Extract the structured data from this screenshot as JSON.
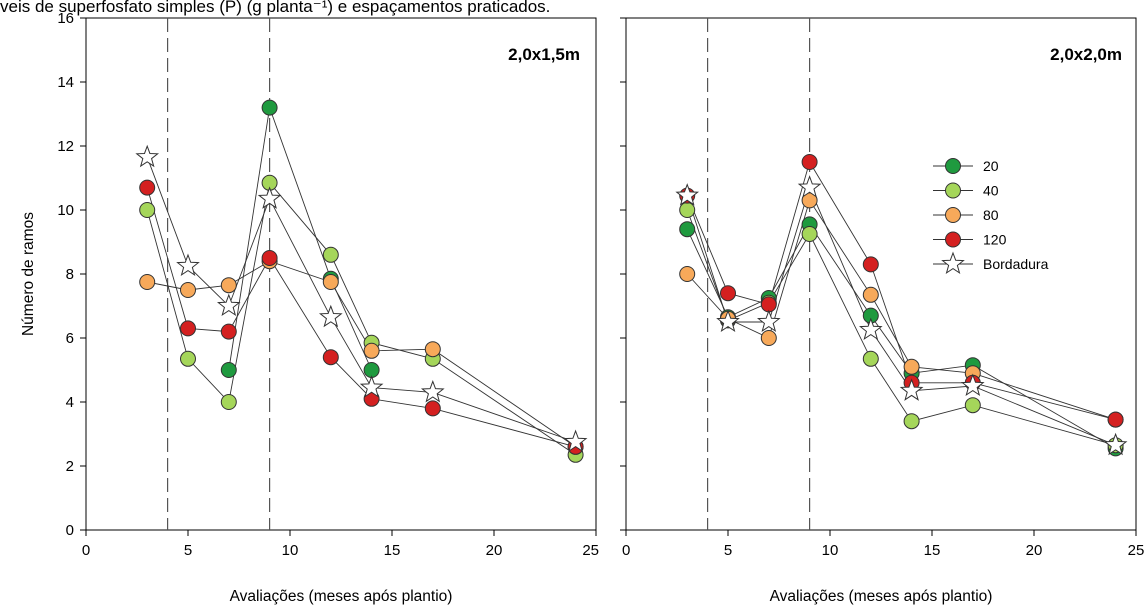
{
  "caption": "veis de superfosfato simples (P) (g planta⁻¹) e espaçamentos praticados.",
  "chart_data": [
    {
      "type": "line",
      "title": "2,0x1,5m",
      "xlabel": "Avaliações (meses após plantio)",
      "ylabel": "Número de ramos",
      "xlim": [
        0,
        25
      ],
      "ylim": [
        0,
        16
      ],
      "xticks": [
        0,
        5,
        10,
        15,
        20,
        25
      ],
      "yticks": [
        0,
        2,
        4,
        6,
        8,
        10,
        12,
        14,
        16
      ],
      "reference_lines_x": [
        4,
        9
      ],
      "x": [
        3,
        5,
        7,
        9,
        12,
        14,
        17,
        24
      ],
      "series": [
        {
          "name": "20",
          "color": "#1f9a3f",
          "marker": "circle",
          "values": [
            null,
            null,
            5.0,
            13.2,
            7.85,
            5.0,
            null,
            null
          ]
        },
        {
          "name": "40",
          "color": "#a5d65a",
          "marker": "circle",
          "values": [
            10.0,
            5.35,
            4.0,
            10.85,
            8.6,
            5.85,
            5.35,
            2.35
          ]
        },
        {
          "name": "80",
          "color": "#f7a95a",
          "marker": "circle",
          "values": [
            7.75,
            7.5,
            7.65,
            8.4,
            7.75,
            5.6,
            5.65,
            2.6
          ]
        },
        {
          "name": "120",
          "color": "#d42020",
          "marker": "circle",
          "values": [
            10.7,
            6.3,
            6.2,
            8.5,
            5.4,
            4.1,
            3.8,
            2.6
          ]
        },
        {
          "name": "Bordadura",
          "color": "#ffffff",
          "marker": "star",
          "values": [
            11.65,
            8.25,
            7.0,
            10.35,
            6.65,
            4.45,
            4.3,
            2.75
          ]
        }
      ]
    },
    {
      "type": "line",
      "title": "2,0x2,0m",
      "xlabel": "Avaliações (meses após plantio)",
      "ylabel": "",
      "xlim": [
        0,
        25
      ],
      "ylim": [
        0,
        16
      ],
      "xticks": [
        0,
        5,
        10,
        15,
        20,
        25
      ],
      "reference_lines_x": [
        4,
        9
      ],
      "legend_position": "top-right",
      "x": [
        3,
        5,
        7,
        9,
        12,
        14,
        17,
        24
      ],
      "series": [
        {
          "name": "20",
          "color": "#1f9a3f",
          "marker": "circle",
          "values": [
            9.4,
            6.65,
            7.25,
            9.55,
            6.7,
            4.9,
            5.15,
            2.55
          ]
        },
        {
          "name": "40",
          "color": "#a5d65a",
          "marker": "circle",
          "values": [
            10.0,
            6.55,
            7.1,
            9.25,
            5.35,
            3.4,
            3.9,
            2.65
          ]
        },
        {
          "name": "80",
          "color": "#f7a95a",
          "marker": "circle",
          "values": [
            8.0,
            6.6,
            6.0,
            10.3,
            7.35,
            5.1,
            4.9,
            3.45
          ]
        },
        {
          "name": "120",
          "color": "#d42020",
          "marker": "circle",
          "values": [
            10.45,
            7.4,
            7.05,
            11.5,
            8.3,
            4.6,
            4.6,
            3.45
          ]
        },
        {
          "name": "Bordadura",
          "color": "#ffffff",
          "marker": "star",
          "values": [
            10.45,
            6.5,
            6.5,
            10.7,
            6.25,
            4.35,
            4.5,
            2.65
          ]
        }
      ]
    }
  ]
}
